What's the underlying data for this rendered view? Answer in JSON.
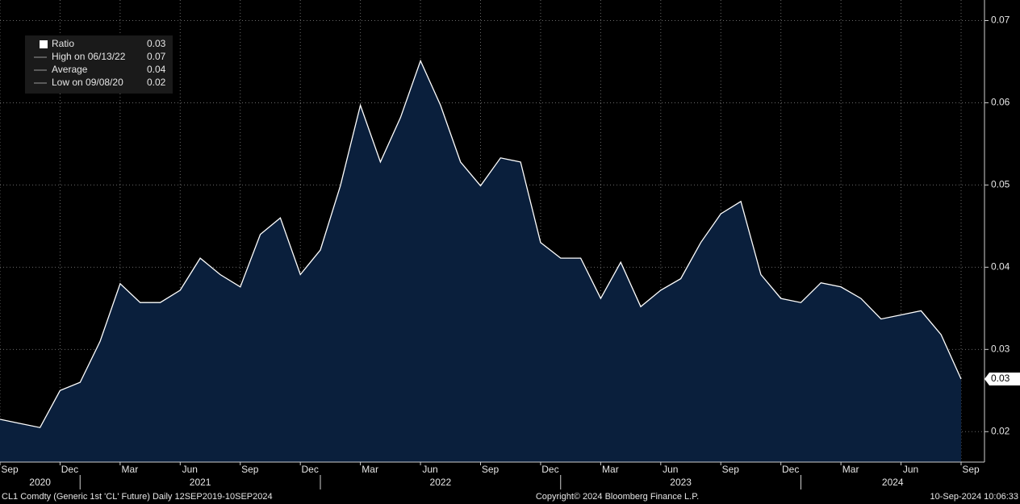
{
  "chart_data": {
    "type": "area",
    "x": [
      "2020-09",
      "2020-10",
      "2020-11",
      "2020-12",
      "2021-01",
      "2021-02",
      "2021-03",
      "2021-04",
      "2021-05",
      "2021-06",
      "2021-07",
      "2021-08",
      "2021-09",
      "2021-10",
      "2021-11",
      "2021-12",
      "2022-01",
      "2022-02",
      "2022-03",
      "2022-04",
      "2022-05",
      "2022-06",
      "2022-07",
      "2022-08",
      "2022-09",
      "2022-10",
      "2022-11",
      "2022-12",
      "2023-01",
      "2023-02",
      "2023-03",
      "2023-04",
      "2023-05",
      "2023-06",
      "2023-07",
      "2023-08",
      "2023-09",
      "2023-10",
      "2023-11",
      "2023-12",
      "2024-01",
      "2024-02",
      "2024-03",
      "2024-04",
      "2024-05",
      "2024-06",
      "2024-07",
      "2024-08",
      "2024-09"
    ],
    "series": [
      {
        "name": "Ratio",
        "color": "#ffffff",
        "fill": "#0a1f3c",
        "values": [
          0.0215,
          0.021,
          0.0205,
          0.025,
          0.026,
          0.031,
          0.038,
          0.0357,
          0.0357,
          0.0372,
          0.0411,
          0.0391,
          0.0376,
          0.044,
          0.046,
          0.0391,
          0.0421,
          0.0499,
          0.0597,
          0.0528,
          0.0582,
          0.0651,
          0.0597,
          0.0528,
          0.0499,
          0.0533,
          0.0528,
          0.043,
          0.0411,
          0.0411,
          0.0362,
          0.0406,
          0.0352,
          0.0372,
          0.0386,
          0.043,
          0.0465,
          0.048,
          0.0391,
          0.0362,
          0.0357,
          0.0381,
          0.0376,
          0.0362,
          0.0337,
          0.0342,
          0.0347,
          0.0318,
          0.0264
        ]
      }
    ],
    "xlim": [
      "2020-09",
      "2024-09"
    ],
    "xticks": [
      {
        "value": "2020-09",
        "label": "Sep"
      },
      {
        "value": "2020-12",
        "label": "Dec"
      },
      {
        "value": "2021-03",
        "label": "Mar"
      },
      {
        "value": "2021-06",
        "label": "Jun"
      },
      {
        "value": "2021-09",
        "label": "Sep"
      },
      {
        "value": "2021-12",
        "label": "Dec"
      },
      {
        "value": "2022-03",
        "label": "Mar"
      },
      {
        "value": "2022-06",
        "label": "Jun"
      },
      {
        "value": "2022-09",
        "label": "Sep"
      },
      {
        "value": "2022-12",
        "label": "Dec"
      },
      {
        "value": "2023-03",
        "label": "Mar"
      },
      {
        "value": "2023-06",
        "label": "Jun"
      },
      {
        "value": "2023-09",
        "label": "Sep"
      },
      {
        "value": "2023-12",
        "label": "Dec"
      },
      {
        "value": "2024-03",
        "label": "Mar"
      },
      {
        "value": "2024-06",
        "label": "Jun"
      },
      {
        "value": "2024-09",
        "label": "Sep"
      }
    ],
    "years": [
      2020,
      2021,
      2022,
      2023,
      2024
    ],
    "ylim": [
      0.0163,
      0.0725
    ],
    "yticks": [
      0.02,
      0.03,
      0.04,
      0.05,
      0.06,
      0.07
    ],
    "grid": true,
    "legend_position": "upper-left",
    "legend": [
      {
        "label": "Ratio",
        "value": 0.03
      },
      {
        "label": "High on 06/13/22",
        "value": 0.07
      },
      {
        "label": "Average",
        "value": 0.04
      },
      {
        "label": "Low on 09/08/20",
        "value": 0.02
      }
    ],
    "footer": {
      "left": "CL1 Comdty (Generic 1st 'CL' Future)  Daily 12SEP2019-10SEP2024",
      "center": "Copyright© 2024 Bloomberg Finance L.P.",
      "right": "10-Sep-2024 10:06:33"
    }
  }
}
